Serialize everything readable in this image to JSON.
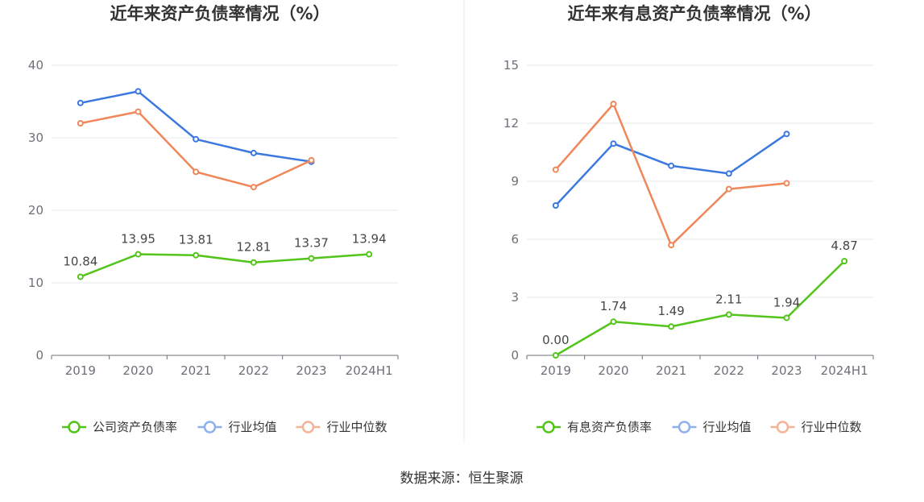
{
  "source_label": "数据来源：恒生聚源",
  "chart_data": [
    {
      "type": "line",
      "title": "近年来资产负债率情况（%）",
      "categories": [
        "2019",
        "2020",
        "2021",
        "2022",
        "2023",
        "2024H1"
      ],
      "ylim": [
        0,
        40
      ],
      "yticks": [
        0,
        10,
        20,
        30,
        40
      ],
      "grid": true,
      "legend_position": "bottom",
      "series": [
        {
          "name": "公司资产负债率",
          "color": "#52c41a",
          "values": [
            10.84,
            13.95,
            13.81,
            12.81,
            13.37,
            13.94
          ],
          "labels": [
            "10.84",
            "13.95",
            "13.81",
            "12.81",
            "13.37",
            "13.94"
          ]
        },
        {
          "name": "行业均值",
          "color": "#3b78e0",
          "values": [
            34.8,
            36.4,
            29.8,
            27.9,
            26.7,
            null
          ]
        },
        {
          "name": "行业中位数",
          "color": "#f0875a",
          "values": [
            32.0,
            33.6,
            25.3,
            23.2,
            26.9,
            null
          ]
        }
      ]
    },
    {
      "type": "line",
      "title": "近年来有息资产负债率情况（%）",
      "categories": [
        "2019",
        "2020",
        "2021",
        "2022",
        "2023",
        "2024H1"
      ],
      "ylim": [
        0,
        15
      ],
      "yticks": [
        0,
        3,
        6,
        9,
        12,
        15
      ],
      "grid": true,
      "legend_position": "bottom",
      "series": [
        {
          "name": "有息资产负债率",
          "color": "#52c41a",
          "values": [
            0.0,
            1.74,
            1.49,
            2.11,
            1.94,
            4.87
          ],
          "labels": [
            "0.00",
            "1.74",
            "1.49",
            "2.11",
            "1.94",
            "4.87"
          ]
        },
        {
          "name": "行业均值",
          "color": "#3b78e0",
          "values": [
            7.75,
            10.95,
            9.8,
            9.4,
            11.45,
            null
          ]
        },
        {
          "name": "行业中位数",
          "color": "#f0875a",
          "values": [
            9.6,
            13.0,
            5.7,
            8.6,
            8.9,
            null
          ]
        }
      ]
    }
  ]
}
